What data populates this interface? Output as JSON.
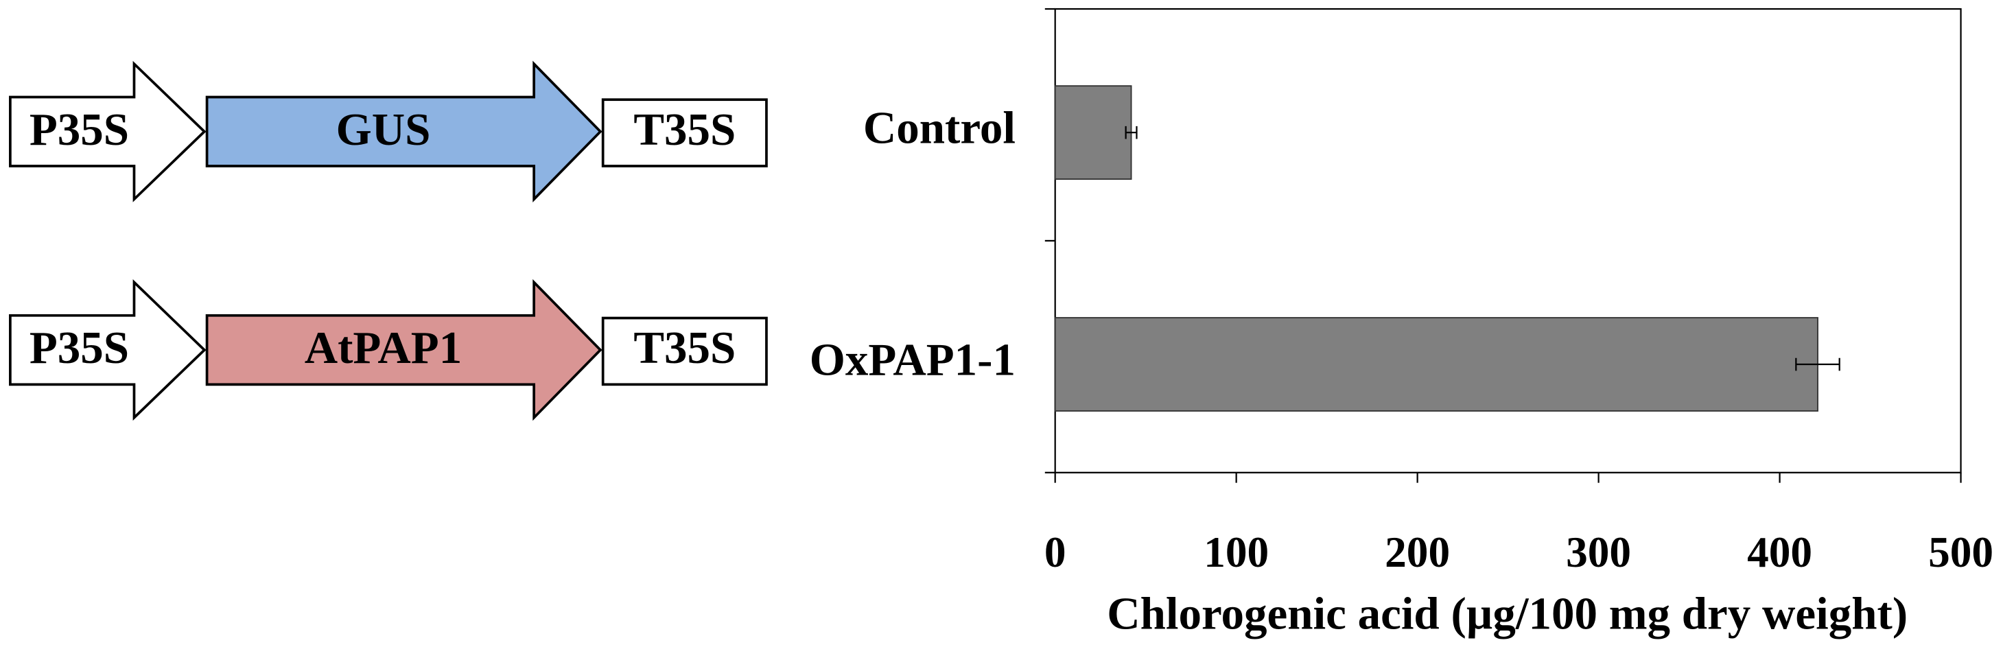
{
  "diagram": {
    "rows": [
      {
        "promoter": "P35S",
        "gene": "GUS",
        "terminator": "T35S",
        "gene_color": "#8db3e2"
      },
      {
        "promoter": "P35S",
        "gene": "AtPAP1",
        "terminator": "T35S",
        "gene_color": "#d99594"
      }
    ]
  },
  "chart_data": {
    "type": "bar",
    "orientation": "horizontal",
    "categories": [
      "Control",
      "OxPAP1-1"
    ],
    "values": [
      42,
      421
    ],
    "errors": [
      3,
      12
    ],
    "color": "#808080",
    "xlim": [
      0,
      500
    ],
    "xticks": [
      0,
      100,
      200,
      300,
      400,
      500
    ],
    "xlabel": "Chlorogenic acid (µg/100 mg dry weight)"
  }
}
